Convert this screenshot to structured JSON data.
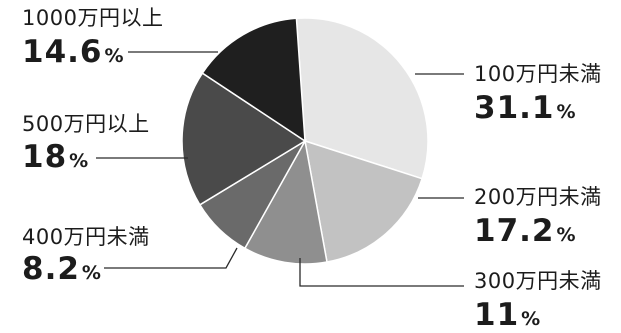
{
  "chart_data": {
    "type": "pie",
    "title": "",
    "slices": [
      {
        "label": "100万円未満",
        "value": 31.1,
        "display": "31.1",
        "color": "#e6e6e6"
      },
      {
        "label": "200万円未満",
        "value": 17.2,
        "display": "17.2",
        "color": "#c2c2c2"
      },
      {
        "label": "300万円未満",
        "value": 11,
        "display": "11",
        "color": "#8f8f8f"
      },
      {
        "label": "400万円未満",
        "value": 8.2,
        "display": "8.2",
        "color": "#6a6a6a"
      },
      {
        "label": "500万円以上",
        "value": 18,
        "display": "18",
        "color": "#4a4a4a"
      },
      {
        "label": "1000万円以上",
        "value": 14.6,
        "display": "14.6",
        "color": "#1f1f1f"
      }
    ],
    "unit": "%"
  }
}
